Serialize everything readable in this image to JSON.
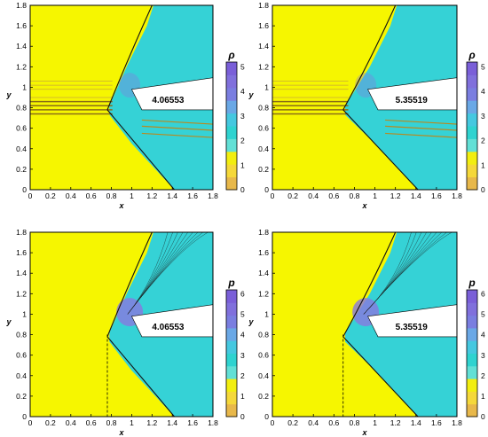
{
  "colorbar_colors": [
    "#e8b84a",
    "#f5d83a",
    "#f2ee10",
    "#62e0d6",
    "#2fd3d0",
    "#45c8e0",
    "#6aa8e6",
    "#7a7ee0",
    "#8070dc",
    "#7a5fd8"
  ],
  "colors": {
    "background": "#f6f600",
    "freestream": "#f6f600",
    "shock_layer": "#35d2d6",
    "density_high": "#8a78e0",
    "body": "#ffffff",
    "axis": "#000000"
  },
  "panels": [
    {
      "variable": "ρ",
      "label_value": "4.06553",
      "xlabel": "x",
      "ylabel": "y",
      "xticks": [
        "0",
        "0.2",
        "0.4",
        "0.6",
        "0.8",
        "1",
        "1.2",
        "1.4",
        "1.6",
        "1.8"
      ],
      "yticks": [
        "0",
        "0.2",
        "0.4",
        "0.6",
        "0.8",
        "1",
        "1.2",
        "1.4",
        "1.6",
        "1.8"
      ],
      "cbar_ticks": [
        "0",
        "1",
        "2",
        "3",
        "4",
        "5"
      ],
      "cbar_max": 5.2,
      "xlim": [
        0,
        1.8
      ],
      "ylim": [
        0,
        1.8
      ]
    },
    {
      "variable": "ρ",
      "label_value": "5.35519",
      "xlabel": "x",
      "ylabel": "y",
      "xticks": [
        "0",
        "0.2",
        "0.4",
        "0.6",
        "0.8",
        "1",
        "1.2",
        "1.4",
        "1.6",
        "1.8"
      ],
      "yticks": [
        "0",
        "0.2",
        "0.4",
        "0.6",
        "0.8",
        "1",
        "1.2",
        "1.4",
        "1.6",
        "1.8"
      ],
      "cbar_ticks": [
        "0",
        "1",
        "2",
        "3",
        "4",
        "5"
      ],
      "cbar_max": 5.2,
      "xlim": [
        0,
        1.8
      ],
      "ylim": [
        0,
        1.8
      ]
    },
    {
      "variable": "p",
      "label_value": "4.06553",
      "xlabel": "x",
      "ylabel": "y",
      "xticks": [
        "0",
        "0.2",
        "0.4",
        "0.6",
        "0.8",
        "1",
        "1.2",
        "1.4",
        "1.6",
        "1.8"
      ],
      "yticks": [
        "0",
        "0.2",
        "0.4",
        "0.6",
        "0.8",
        "1",
        "1.2",
        "1.4",
        "1.6",
        "1.8"
      ],
      "cbar_ticks": [
        "0",
        "1",
        "2",
        "3",
        "4",
        "5",
        "6"
      ],
      "cbar_max": 6.2,
      "xlim": [
        0,
        1.8
      ],
      "ylim": [
        0,
        1.8
      ]
    },
    {
      "variable": "p",
      "label_value": "5.35519",
      "xlabel": "x",
      "ylabel": "y",
      "xticks": [
        "0",
        "0.2",
        "0.4",
        "0.6",
        "0.8",
        "1",
        "1.2",
        "1.4",
        "1.6",
        "1.8"
      ],
      "yticks": [
        "0",
        "0.2",
        "0.4",
        "0.6",
        "0.8",
        "1",
        "1.2",
        "1.4",
        "1.6",
        "1.8"
      ],
      "cbar_ticks": [
        "0",
        "1",
        "2",
        "3",
        "4",
        "5",
        "6"
      ],
      "cbar_max": 6.2,
      "xlim": [
        0,
        1.8
      ],
      "ylim": [
        0,
        1.8
      ]
    }
  ]
}
